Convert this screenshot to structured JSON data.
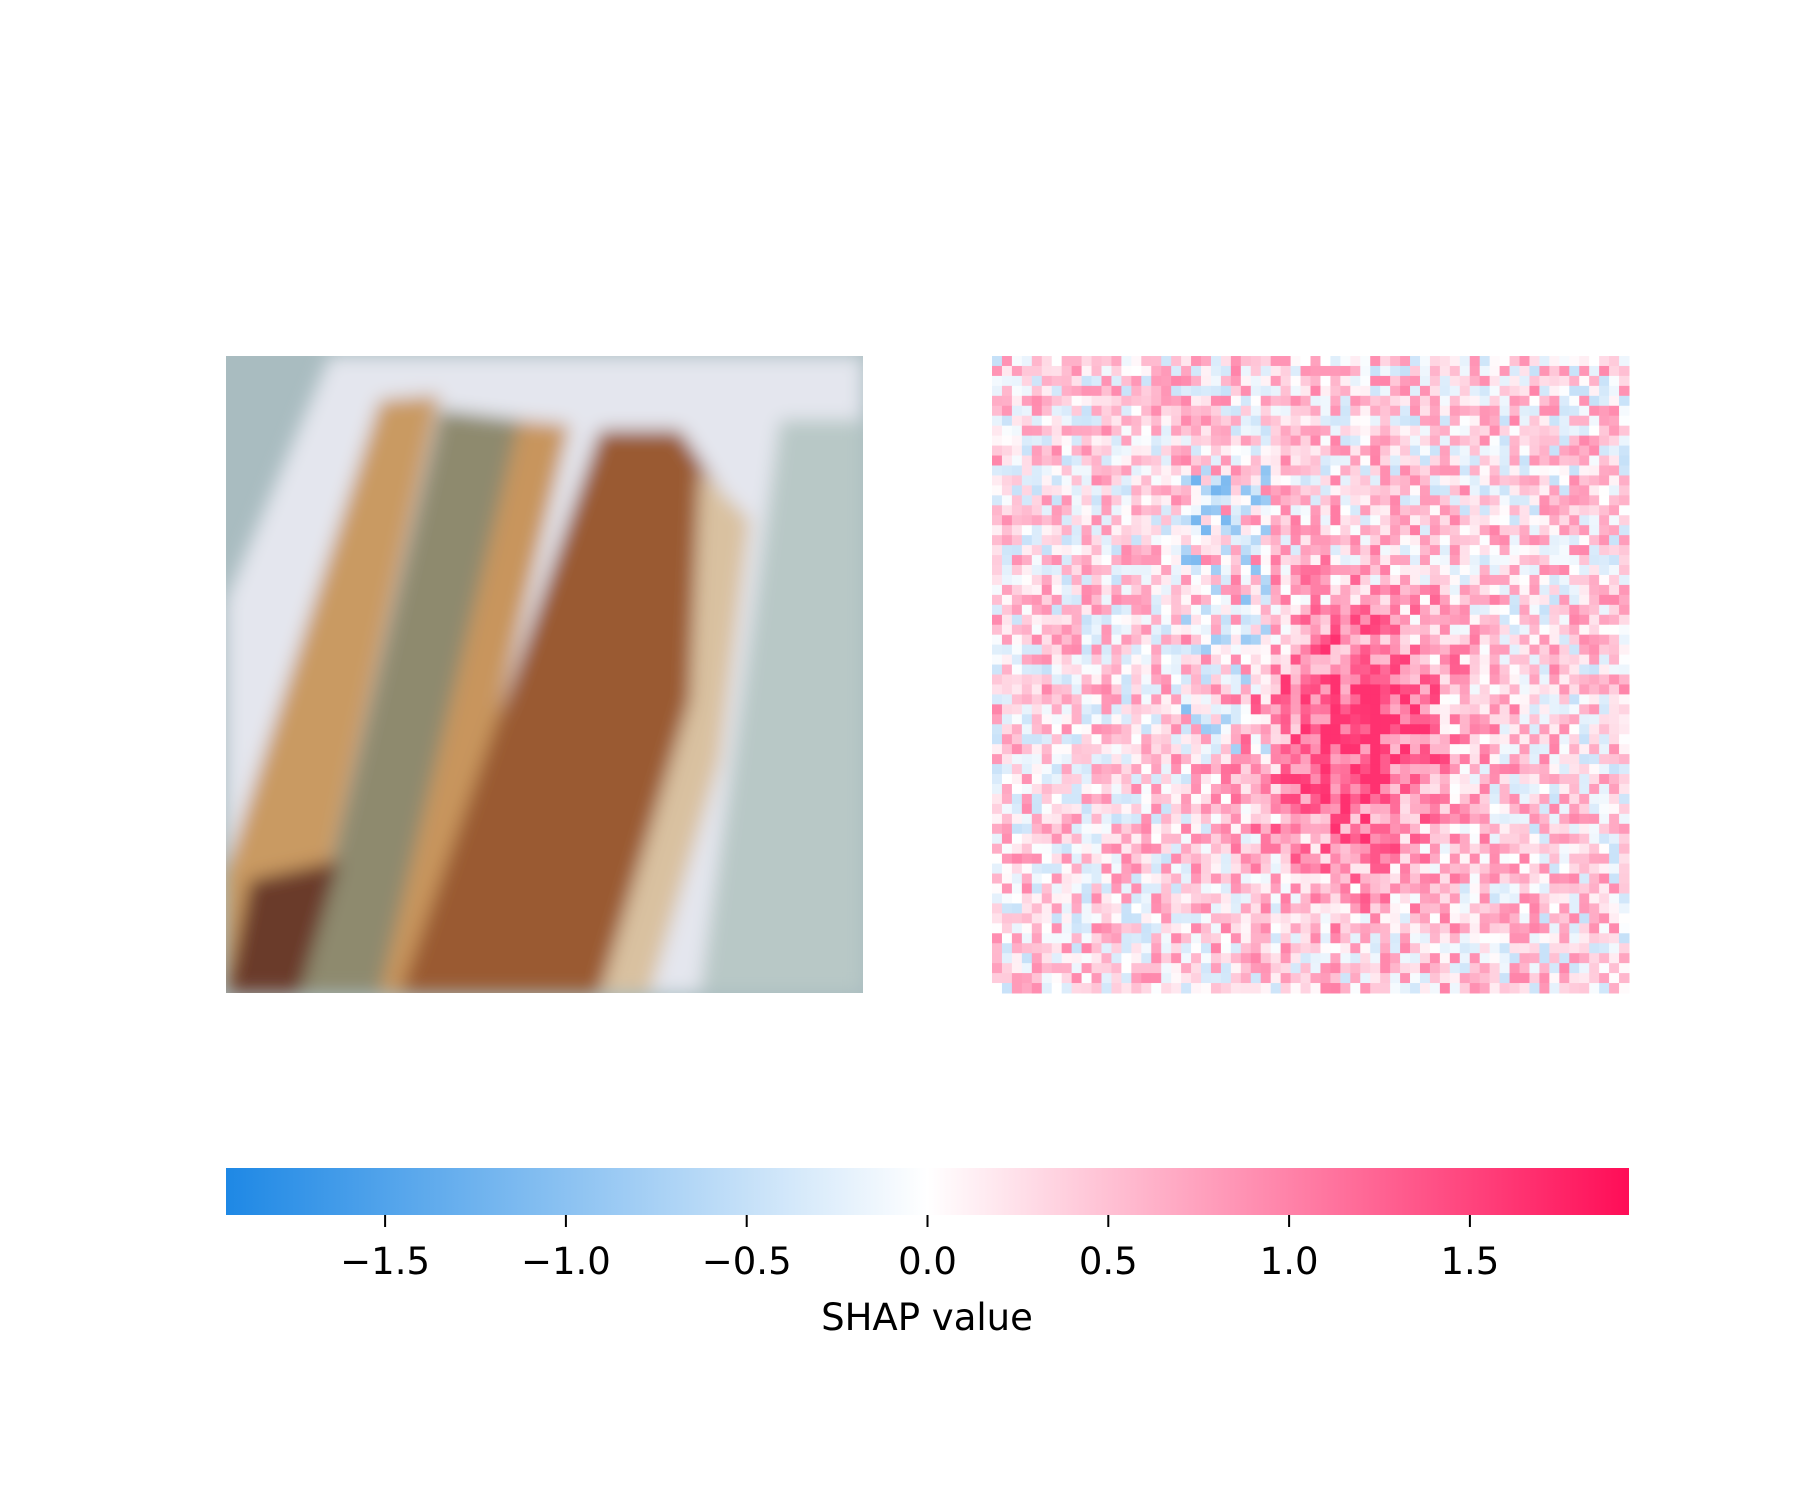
{
  "chart_data": {
    "type": "shap_image",
    "xlabel": "SHAP value",
    "xlim": [
      -1.94,
      1.94
    ],
    "xticks": [
      {
        "value": -1.5,
        "label": "−1.5"
      },
      {
        "value": -1.0,
        "label": "−1.0"
      },
      {
        "value": -0.5,
        "label": "−0.5"
      },
      {
        "value": 0,
        "label": "0.0"
      },
      0.5,
      {
        "value": 1.0,
        "label": "1.0"
      },
      1.5
    ],
    "negative_color": "#1e88e5",
    "positive_color": "#ff0d57"
  }
}
